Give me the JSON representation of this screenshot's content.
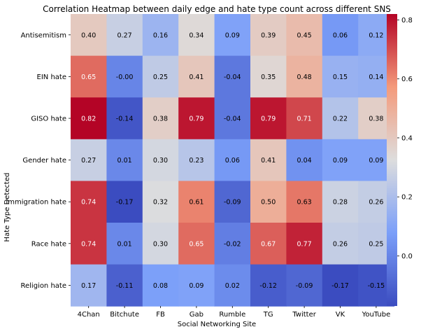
{
  "chart_data": {
    "type": "heatmap",
    "title": "Correlation Heatmap between daily edge and hate type count across different SNS",
    "xlabel": "Social Networking Site",
    "ylabel": "Hate Type Detected",
    "x_categories": [
      "4Chan",
      "Bitchute",
      "FB",
      "Gab",
      "Rumble",
      "TG",
      "Twitter",
      "VK",
      "YouTube"
    ],
    "y_categories": [
      "Antisemitism",
      "EIN hate",
      "GISO hate",
      "Gender hate",
      "Immigration hate",
      "Race hate",
      "Religion hate"
    ],
    "values": [
      [
        0.4,
        0.27,
        0.16,
        0.34,
        0.09,
        0.39,
        0.45,
        0.06,
        0.12
      ],
      [
        0.65,
        -0.0,
        0.25,
        0.41,
        -0.04,
        0.35,
        0.48,
        0.15,
        0.14
      ],
      [
        0.82,
        -0.14,
        0.38,
        0.79,
        -0.04,
        0.79,
        0.71,
        0.22,
        0.38
      ],
      [
        0.27,
        0.01,
        0.3,
        0.23,
        0.06,
        0.41,
        0.04,
        0.09,
        0.09
      ],
      [
        0.74,
        -0.17,
        0.32,
        0.61,
        -0.09,
        0.5,
        0.63,
        0.28,
        0.26
      ],
      [
        0.74,
        0.01,
        0.3,
        0.65,
        -0.02,
        0.67,
        0.77,
        0.26,
        0.25
      ],
      [
        0.17,
        -0.11,
        0.08,
        0.09,
        0.02,
        -0.12,
        -0.09,
        -0.17,
        -0.15
      ]
    ],
    "value_labels": [
      [
        "0.40",
        "0.27",
        "0.16",
        "0.34",
        "0.09",
        "0.39",
        "0.45",
        "0.06",
        "0.12"
      ],
      [
        "0.65",
        "-0.00",
        "0.25",
        "0.41",
        "-0.04",
        "0.35",
        "0.48",
        "0.15",
        "0.14"
      ],
      [
        "0.82",
        "-0.14",
        "0.38",
        "0.79",
        "-0.04",
        "0.79",
        "0.71",
        "0.22",
        "0.38"
      ],
      [
        "0.27",
        "0.01",
        "0.30",
        "0.23",
        "0.06",
        "0.41",
        "0.04",
        "0.09",
        "0.09"
      ],
      [
        "0.74",
        "-0.17",
        "0.32",
        "0.61",
        "-0.09",
        "0.50",
        "0.63",
        "0.28",
        "0.26"
      ],
      [
        "0.74",
        "0.01",
        "0.30",
        "0.65",
        "-0.02",
        "0.67",
        "0.77",
        "0.26",
        "0.25"
      ],
      [
        "0.17",
        "-0.11",
        "0.08",
        "0.09",
        "0.02",
        "-0.12",
        "-0.09",
        "-0.17",
        "-0.15"
      ]
    ],
    "colormap": "coolwarm",
    "color_range": [
      -0.17,
      0.82
    ],
    "colorbar_ticks": [
      "0.0",
      "0.2",
      "0.4",
      "0.6",
      "0.8"
    ],
    "colorbar_tick_values": [
      0.0,
      0.2,
      0.4,
      0.6,
      0.8
    ],
    "grid": false,
    "legend": "colorbar-right"
  }
}
